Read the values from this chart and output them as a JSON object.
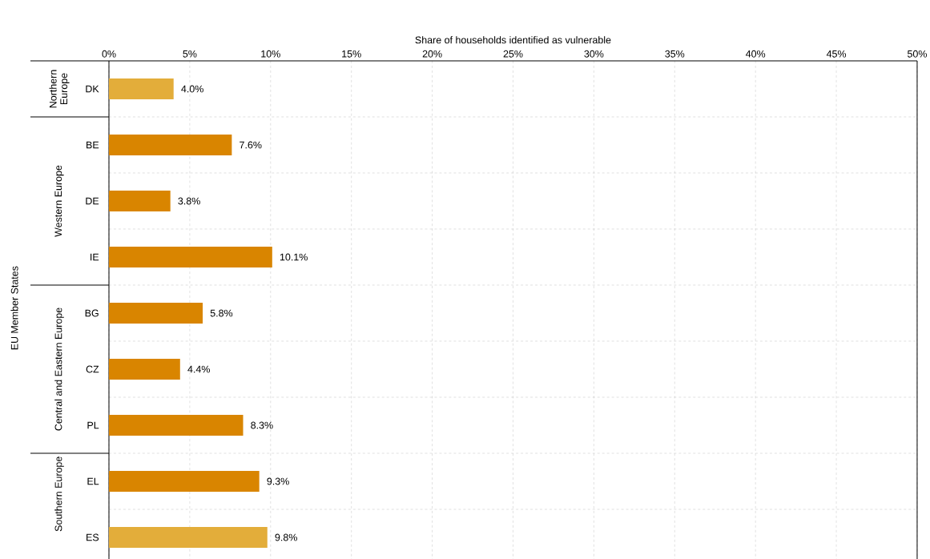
{
  "chart_data": {
    "type": "bar",
    "orientation": "horizontal",
    "xlabel": "Share of households identified as vulnerable",
    "categories": [
      "DK",
      "BE",
      "DE",
      "IE",
      "BG",
      "CZ",
      "PL",
      "EL",
      "ES"
    ],
    "values": [
      4.0,
      7.6,
      3.8,
      10.1,
      5.8,
      4.4,
      8.3,
      9.3,
      9.8
    ],
    "value_labels": [
      "4.0%",
      "7.6%",
      "3.8%",
      "10.1%",
      "5.8%",
      "4.4%",
      "8.3%",
      "9.3%",
      "9.8%"
    ],
    "colors": [
      "#e3ad3a",
      "#d98500",
      "#d98500",
      "#d98500",
      "#d98500",
      "#d98500",
      "#d98500",
      "#d98500",
      "#e3ad3a"
    ],
    "xlim": [
      0,
      50
    ],
    "xticks": [
      {
        "value": 0,
        "label": "0%"
      },
      {
        "value": 5,
        "label": "5%"
      },
      {
        "value": 10,
        "label": "10%"
      },
      {
        "value": 15,
        "label": "15%"
      },
      {
        "value": 20,
        "label": "20%"
      },
      {
        "value": 25,
        "label": "25%"
      },
      {
        "value": 30,
        "label": "30%"
      },
      {
        "value": 35,
        "label": "35%"
      },
      {
        "value": 40,
        "label": "40%"
      },
      {
        "value": 45,
        "label": "45%"
      },
      {
        "value": 50,
        "label": "50%"
      }
    ],
    "grid": true,
    "annotations": [
      "Northern Europe",
      "Western Europe",
      "Central and Eastern Europe",
      "Southern Europe",
      "EU Member States"
    ]
  }
}
